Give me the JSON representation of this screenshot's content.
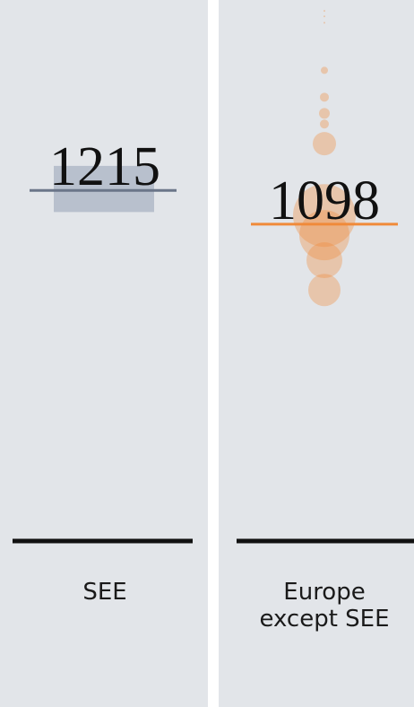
{
  "chart_data": {
    "type": "dot",
    "categories": [
      "SEE",
      "Europe except SEE"
    ],
    "values": [
      1215,
      1098
    ],
    "colors": [
      "#6b7689",
      "#f08a3a"
    ],
    "ylim": [
      0,
      1850
    ],
    "band": [
      1140,
      1300
    ],
    "points": {
      "values": [
        1837,
        1818,
        1796,
        1631,
        1538,
        1482,
        1445,
        1377,
        1128,
        1060,
        973,
        870
      ],
      "sizes": [
        1,
        1,
        1,
        4,
        5,
        6,
        5,
        13,
        35,
        28,
        20,
        18
      ]
    }
  }
}
